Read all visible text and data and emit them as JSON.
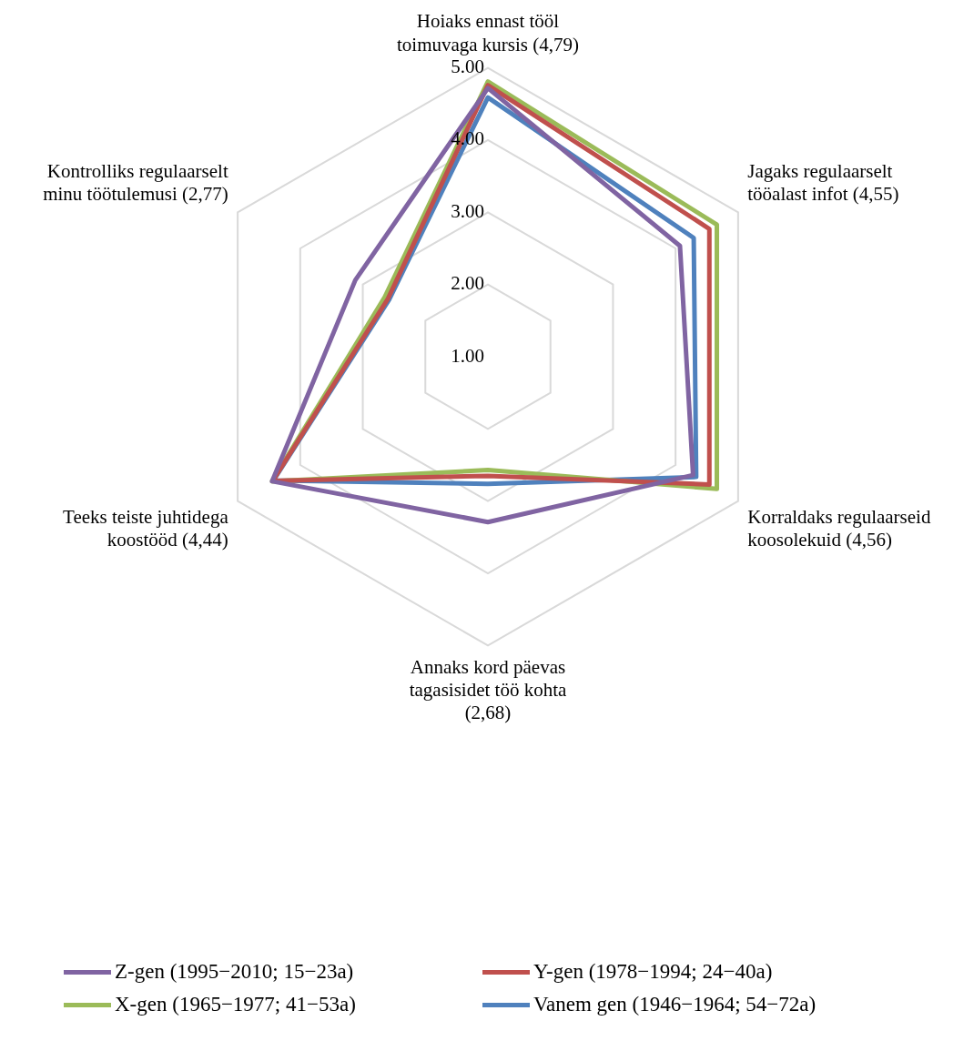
{
  "chart_data": {
    "type": "radar",
    "categories": [
      "Hoiaks ennast tööl toimuvaga kursis (4,79)",
      "Jagaks regulaarselt tööalast infot (4,55)",
      "Korraldaks regulaarseid koosolekuid (4,56)",
      "Annaks kord päevas tagasisidet töö kohta (2,68)",
      "Teeks teiste juhtidega koostööd (4,44)",
      "Kontrolliks regulaarselt minu töötulemusi (2,77)"
    ],
    "series": [
      {
        "name": "Z-gen (1995−2010; 15−23a)",
        "color": "#8064a2",
        "values": [
          4.72,
          4.07,
          4.28,
          3.29,
          4.45,
          3.12
        ]
      },
      {
        "name": "Y-gen (1978−1994; 24−40a)",
        "color": "#c0504d",
        "values": [
          4.76,
          4.54,
          4.54,
          2.65,
          4.44,
          2.6
        ]
      },
      {
        "name": "X-gen (1965−1977; 41−53a)",
        "color": "#9bbb59",
        "values": [
          4.81,
          4.66,
          4.66,
          2.57,
          4.45,
          2.65
        ]
      },
      {
        "name": "Vanem gen (1946−1964; 54−72a)",
        "color": "#4f81bd",
        "values": [
          4.59,
          4.29,
          4.33,
          2.76,
          4.43,
          2.58
        ]
      }
    ],
    "ylim": [
      1,
      5
    ],
    "yticks": [
      {
        "value": 1,
        "label": "1.00"
      },
      {
        "value": 2,
        "label": "2.00"
      },
      {
        "value": 3,
        "label": "3.00"
      },
      {
        "value": 4,
        "label": "4.00"
      },
      {
        "value": 5,
        "label": "5.00"
      }
    ],
    "grid": true,
    "legend": "bottom",
    "marker": "none",
    "line_style": "solid"
  }
}
